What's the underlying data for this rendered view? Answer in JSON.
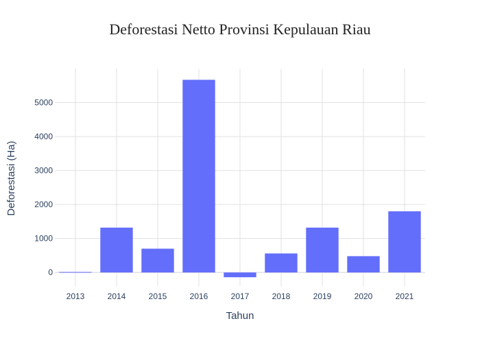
{
  "chart_data": {
    "type": "bar",
    "title": "Deforestasi Netto Provinsi Kepulauan Riau",
    "xlabel": "Tahun",
    "ylabel": "Deforestasi (Ha)",
    "categories": [
      "2013",
      "2014",
      "2015",
      "2016",
      "2017",
      "2018",
      "2019",
      "2020",
      "2021"
    ],
    "values": [
      15,
      1320,
      700,
      5670,
      -140,
      560,
      1320,
      480,
      1800
    ],
    "yticks": [
      0,
      1000,
      2000,
      3000,
      4000,
      5000
    ],
    "ylim": [
      -400,
      6000
    ],
    "grid": true,
    "bar_color": "#636efa",
    "grid_color": "#e1e1e6"
  }
}
